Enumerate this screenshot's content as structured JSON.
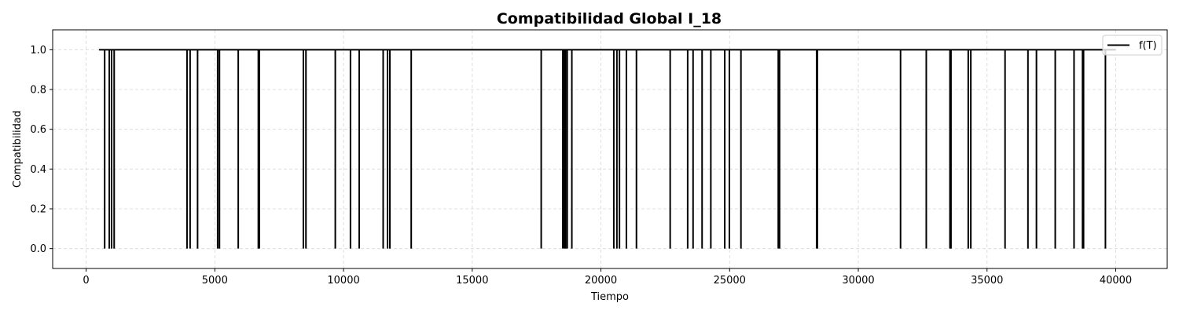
{
  "chart_data": {
    "type": "line",
    "title": "Compatibilidad Global I_18",
    "xlabel": "Tiempo",
    "ylabel": "Compatibilidad",
    "xlim": [
      -1300,
      42000
    ],
    "ylim": [
      -0.1,
      1.1
    ],
    "xticks": [
      0,
      5000,
      10000,
      15000,
      20000,
      25000,
      30000,
      35000,
      40000
    ],
    "xtick_labels": [
      "0",
      "5000",
      "10000",
      "15000",
      "20000",
      "25000",
      "30000",
      "35000",
      "40000"
    ],
    "yticks": [
      0.0,
      0.2,
      0.4,
      0.6,
      0.8,
      1.0
    ],
    "ytick_labels": [
      "0.0",
      "0.2",
      "0.4",
      "0.6",
      "0.8",
      "1.0"
    ],
    "grid": true,
    "legend_position": "upper right",
    "series": [
      {
        "name": "f(T)",
        "color": "#000000",
        "baseline": 1.0,
        "x_start": 500,
        "x_end": 40000,
        "dips_to": 0.0,
        "drop_times": [
          720,
          900,
          990,
          1090,
          3920,
          4040,
          4330,
          5110,
          5180,
          5910,
          6690,
          6730,
          8440,
          8540,
          9680,
          10270,
          10610,
          11540,
          11710,
          11800,
          12630,
          17680,
          18520,
          18580,
          18630,
          18690,
          18870,
          20500,
          20620,
          20720,
          20990,
          21380,
          22690,
          23370,
          23580,
          23930,
          24270,
          24810,
          24990,
          25440,
          26890,
          26940,
          28380,
          28410,
          31640,
          32640,
          33560,
          33600,
          34270,
          34370,
          35700,
          36590,
          36920,
          37650,
          38380,
          38710,
          38750,
          39600
        ]
      }
    ]
  }
}
